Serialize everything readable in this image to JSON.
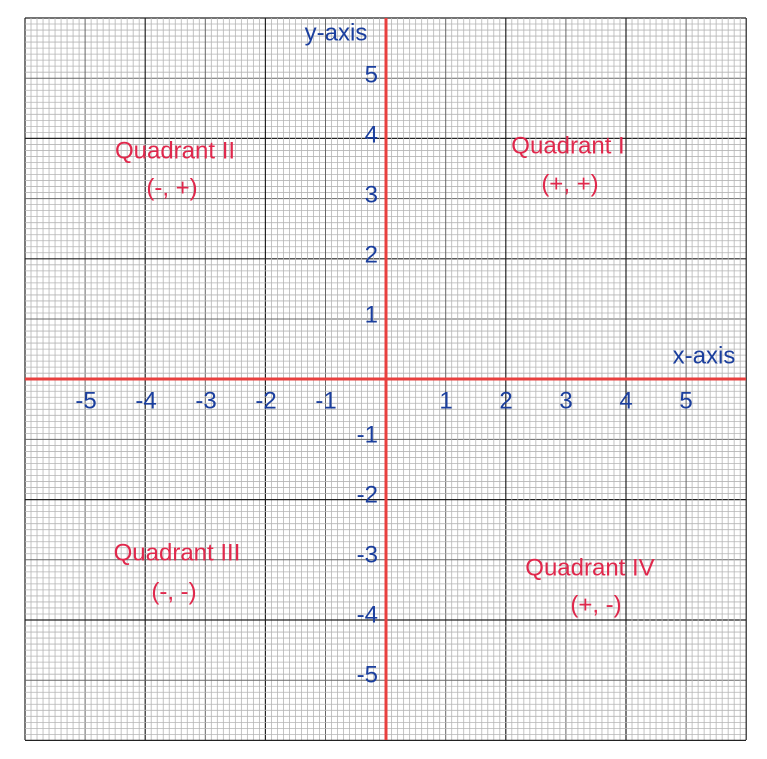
{
  "axes": {
    "x_label": "x-axis",
    "y_label": "y-axis"
  },
  "x_ticks": [
    -5,
    -4,
    -3,
    -2,
    -1,
    1,
    2,
    3,
    4,
    5
  ],
  "y_ticks": [
    5,
    4,
    3,
    2,
    1,
    -1,
    -2,
    -3,
    -4,
    -5
  ],
  "quadrants": [
    {
      "name": "Quadrant I",
      "signs": "(+, +)"
    },
    {
      "name": "Quadrant II",
      "signs": "(-, +)"
    },
    {
      "name": "Quadrant III",
      "signs": "(-, -)"
    },
    {
      "name": "Quadrant IV",
      "signs": "(+, -)"
    }
  ]
}
